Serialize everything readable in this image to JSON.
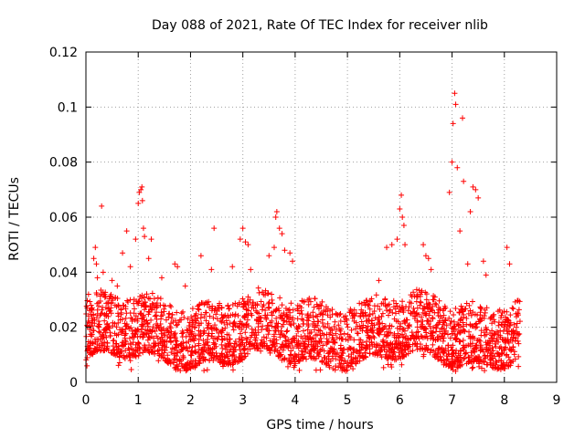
{
  "chart_data": {
    "type": "scatter",
    "title": "Day 088 of 2021, Rate Of TEC Index for receiver nlib",
    "xlabel": "GPS time / hours",
    "ylabel": "ROTI / TECUs",
    "xlim": [
      0,
      9
    ],
    "ylim": [
      0,
      0.12
    ],
    "xticks": [
      "0",
      "1",
      "2",
      "3",
      "4",
      "5",
      "6",
      "7",
      "8",
      "9"
    ],
    "xtick_values": [
      0,
      1,
      2,
      3,
      4,
      5,
      6,
      7,
      8,
      9
    ],
    "yticks": [
      "0",
      "0.02",
      "0.04",
      "0.06",
      "0.08",
      "0.1",
      "0.12"
    ],
    "ytick_values": [
      0,
      0.02,
      0.04,
      0.06,
      0.08,
      0.1,
      0.12
    ],
    "grid": true,
    "marker": "+",
    "marker_color": "#ff0000",
    "series": [
      {
        "name": "ROTI",
        "x_range": [
          0,
          8.3
        ],
        "baseline_band": [
          0.008,
          0.03
        ],
        "note": "dense cloud of several thousand points between about 0.005 and 0.035; outliers listed below",
        "points": [
          [
            0.02,
            0.006
          ],
          [
            0.05,
            0.032
          ],
          [
            0.1,
            0.028
          ],
          [
            0.15,
            0.045
          ],
          [
            0.18,
            0.049
          ],
          [
            0.2,
            0.043
          ],
          [
            0.22,
            0.038
          ],
          [
            0.3,
            0.064
          ],
          [
            0.33,
            0.04
          ],
          [
            0.5,
            0.037
          ],
          [
            0.6,
            0.035
          ],
          [
            0.7,
            0.047
          ],
          [
            0.78,
            0.055
          ],
          [
            0.85,
            0.042
          ],
          [
            0.95,
            0.052
          ],
          [
            1.0,
            0.065
          ],
          [
            1.02,
            0.069
          ],
          [
            1.05,
            0.07
          ],
          [
            1.07,
            0.071
          ],
          [
            1.08,
            0.066
          ],
          [
            1.1,
            0.056
          ],
          [
            1.12,
            0.053
          ],
          [
            1.2,
            0.045
          ],
          [
            1.25,
            0.052
          ],
          [
            1.45,
            0.038
          ],
          [
            1.7,
            0.043
          ],
          [
            1.75,
            0.042
          ],
          [
            1.9,
            0.035
          ],
          [
            2.2,
            0.046
          ],
          [
            2.4,
            0.041
          ],
          [
            2.45,
            0.056
          ],
          [
            2.8,
            0.042
          ],
          [
            2.95,
            0.052
          ],
          [
            3.0,
            0.056
          ],
          [
            3.05,
            0.051
          ],
          [
            3.1,
            0.05
          ],
          [
            3.15,
            0.041
          ],
          [
            3.5,
            0.046
          ],
          [
            3.6,
            0.049
          ],
          [
            3.63,
            0.06
          ],
          [
            3.65,
            0.062
          ],
          [
            3.7,
            0.056
          ],
          [
            3.75,
            0.054
          ],
          [
            3.8,
            0.048
          ],
          [
            3.9,
            0.047
          ],
          [
            3.95,
            0.044
          ],
          [
            5.6,
            0.037
          ],
          [
            5.75,
            0.049
          ],
          [
            5.85,
            0.05
          ],
          [
            5.95,
            0.052
          ],
          [
            6.0,
            0.063
          ],
          [
            6.03,
            0.068
          ],
          [
            6.05,
            0.06
          ],
          [
            6.08,
            0.057
          ],
          [
            6.1,
            0.05
          ],
          [
            6.45,
            0.05
          ],
          [
            6.5,
            0.046
          ],
          [
            6.55,
            0.045
          ],
          [
            6.6,
            0.041
          ],
          [
            6.95,
            0.069
          ],
          [
            7.0,
            0.08
          ],
          [
            7.02,
            0.094
          ],
          [
            7.05,
            0.105
          ],
          [
            7.07,
            0.101
          ],
          [
            7.1,
            0.078
          ],
          [
            7.15,
            0.055
          ],
          [
            7.2,
            0.096
          ],
          [
            7.22,
            0.073
          ],
          [
            7.3,
            0.043
          ],
          [
            7.35,
            0.062
          ],
          [
            7.4,
            0.071
          ],
          [
            7.45,
            0.07
          ],
          [
            7.5,
            0.067
          ],
          [
            7.6,
            0.044
          ],
          [
            7.65,
            0.039
          ],
          [
            8.05,
            0.049
          ],
          [
            8.1,
            0.043
          ],
          [
            8.15,
            0.027
          ]
        ]
      }
    ]
  }
}
